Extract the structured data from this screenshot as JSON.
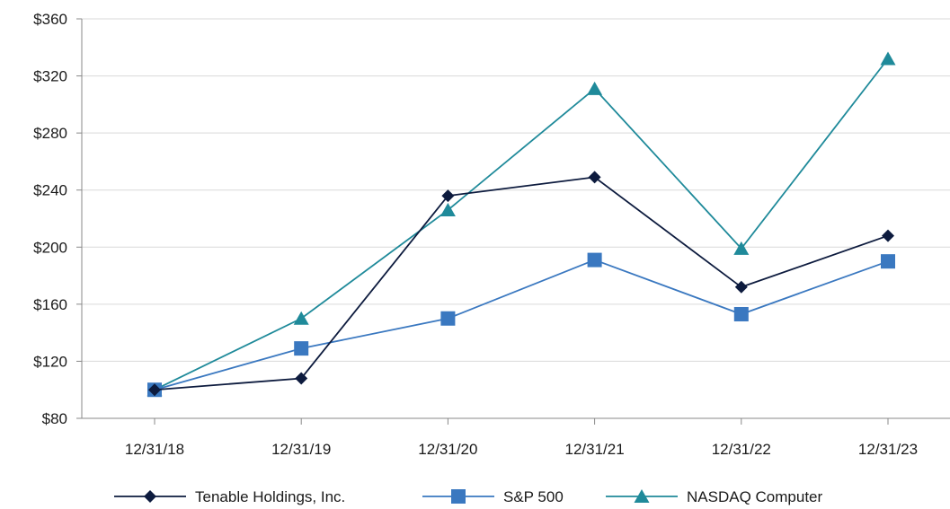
{
  "chart_data": {
    "type": "line",
    "title": "",
    "xlabel": "",
    "ylabel": "",
    "categories": [
      "12/31/18",
      "12/31/19",
      "12/31/20",
      "12/31/21",
      "12/31/22",
      "12/31/23"
    ],
    "y_ticks": [
      "$80",
      "$120",
      "$160",
      "$200",
      "$240",
      "$280",
      "$320",
      "$360"
    ],
    "ylim": [
      80,
      360
    ],
    "y_tick_values": [
      80,
      120,
      160,
      200,
      240,
      280,
      320,
      360
    ],
    "grid": "horizontal",
    "legend_position": "bottom",
    "series": [
      {
        "name": "Tenable Holdings, Inc.",
        "marker": "diamond",
        "color": "#0d1b3e",
        "values": [
          100,
          108,
          236,
          249,
          172,
          208
        ]
      },
      {
        "name": "S&P 500",
        "marker": "square",
        "color": "#3a78c0",
        "values": [
          100,
          129,
          150,
          191,
          153,
          190
        ]
      },
      {
        "name": "NASDAQ Computer",
        "marker": "triangle",
        "color": "#1f8a9a",
        "values": [
          100,
          150,
          226,
          311,
          199,
          332
        ]
      }
    ]
  }
}
